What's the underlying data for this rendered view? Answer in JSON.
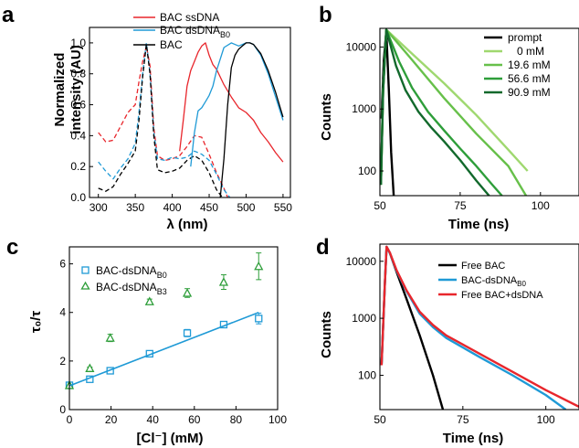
{
  "chart_data": [
    {
      "panel": "a",
      "type": "line",
      "xlabel": "λ (nm)",
      "ylabel_line1": "Normalized",
      "ylabel_line2": "intensity (AU)",
      "xlim": [
        288,
        560
      ],
      "ylim": [
        0,
        1.1
      ],
      "x_ticks": [
        300,
        350,
        400,
        450,
        500,
        550
      ],
      "y_ticks": [
        0.0,
        0.2,
        0.4,
        0.6,
        0.8,
        1.0
      ],
      "legend": {
        "position": "top-left",
        "entries": [
          "BAC ssDNA",
          "BAC dsDNA",
          "BAC"
        ],
        "subscripts": [
          "",
          "B0",
          ""
        ]
      },
      "series": [
        {
          "name": "BAC ssDNA",
          "kind": "excitation",
          "style": "dashed",
          "color": "#e8262c",
          "x": [
            300,
            310,
            320,
            330,
            340,
            350,
            355,
            360,
            365,
            370,
            375,
            380,
            390,
            400,
            410,
            420,
            430,
            440,
            450,
            460,
            470,
            475
          ],
          "y": [
            0.42,
            0.36,
            0.37,
            0.46,
            0.55,
            0.6,
            0.75,
            0.88,
            0.98,
            0.85,
            0.45,
            0.27,
            0.24,
            0.25,
            0.27,
            0.33,
            0.4,
            0.39,
            0.28,
            0.16,
            0.06,
            0.0
          ]
        },
        {
          "name": "BAC dsDNA",
          "kind": "excitation",
          "style": "dashed",
          "color": "#1f9ad6",
          "x": [
            300,
            310,
            320,
            330,
            340,
            350,
            355,
            360,
            365,
            370,
            375,
            380,
            390,
            400,
            410,
            420,
            430,
            440,
            450,
            460,
            470,
            478
          ],
          "y": [
            0.23,
            0.17,
            0.12,
            0.19,
            0.25,
            0.35,
            0.55,
            0.8,
            1.0,
            0.8,
            0.42,
            0.25,
            0.24,
            0.26,
            0.25,
            0.26,
            0.3,
            0.28,
            0.24,
            0.15,
            0.05,
            0.0
          ]
        },
        {
          "name": "BAC",
          "kind": "excitation",
          "style": "dashed",
          "color": "#000000",
          "x": [
            300,
            310,
            320,
            330,
            340,
            350,
            355,
            360,
            365,
            370,
            375,
            380,
            390,
            400,
            410,
            420,
            430,
            440,
            450,
            460,
            468
          ],
          "y": [
            0.06,
            0.04,
            0.07,
            0.15,
            0.22,
            0.3,
            0.5,
            0.78,
            0.99,
            0.8,
            0.4,
            0.18,
            0.16,
            0.17,
            0.19,
            0.24,
            0.27,
            0.24,
            0.16,
            0.05,
            0.0
          ]
        },
        {
          "name": "BAC ssDNA",
          "kind": "emission",
          "style": "solid",
          "color": "#e8262c",
          "x": [
            410,
            415,
            420,
            425,
            430,
            435,
            440,
            445,
            450,
            455,
            460,
            470,
            480,
            490,
            500,
            510,
            520,
            530,
            540,
            550
          ],
          "y": [
            0.3,
            0.5,
            0.72,
            0.82,
            0.88,
            0.94,
            0.98,
            1.0,
            0.92,
            0.86,
            0.83,
            0.73,
            0.65,
            0.58,
            0.55,
            0.5,
            0.42,
            0.36,
            0.29,
            0.23
          ]
        },
        {
          "name": "BAC dsDNA",
          "kind": "emission",
          "style": "solid",
          "color": "#1f9ad6",
          "x": [
            425,
            430,
            435,
            440,
            445,
            450,
            455,
            460,
            470,
            480,
            490,
            500,
            505,
            510,
            520,
            530,
            540,
            550
          ],
          "y": [
            0.2,
            0.42,
            0.56,
            0.58,
            0.62,
            0.66,
            0.72,
            0.82,
            0.97,
            1.0,
            0.98,
            1.0,
            1.0,
            0.99,
            0.92,
            0.8,
            0.65,
            0.5
          ]
        },
        {
          "name": "BAC",
          "kind": "emission",
          "style": "solid",
          "color": "#000000",
          "x": [
            465,
            470,
            475,
            480,
            485,
            490,
            495,
            500,
            505,
            510,
            520,
            530,
            540,
            550
          ],
          "y": [
            0.0,
            0.25,
            0.6,
            0.84,
            0.92,
            0.96,
            0.98,
            1.0,
            1.0,
            0.99,
            0.93,
            0.82,
            0.68,
            0.52
          ]
        }
      ]
    },
    {
      "panel": "b",
      "type": "line",
      "xlabel": "Time (ns)",
      "ylabel": "Counts",
      "y_scale": "log",
      "xlim": [
        50,
        112
      ],
      "ylim": [
        40,
        20000
      ],
      "x_ticks": [
        50,
        75,
        100
      ],
      "y_ticks": [
        100,
        1000,
        10000
      ],
      "y_tick_labels": [
        "100",
        "1000",
        "10000"
      ],
      "legend": {
        "position": "top-right",
        "entries": [
          "prompt",
          "0 mM",
          "19.6 mM",
          "56.6 mM",
          "90.9 mM"
        ]
      },
      "series": [
        {
          "name": "prompt",
          "color": "#000000",
          "x": [
            50.5,
            51.2,
            52,
            52.8,
            53.5,
            54.3
          ],
          "y": [
            700,
            6000,
            18000,
            2000,
            200,
            40
          ]
        },
        {
          "name": "0 mM",
          "color": "#9fd86f",
          "x": [
            50.3,
            51,
            52,
            60,
            70,
            80,
            90,
            96
          ],
          "y": [
            60,
            2000,
            19000,
            7800,
            2600,
            800,
            220,
            100
          ]
        },
        {
          "name": "19.6 mM",
          "color": "#67c04a",
          "x": [
            50.3,
            51,
            52,
            60,
            70,
            80,
            90,
            95.5
          ],
          "y": [
            60,
            2000,
            19000,
            6200,
            1500,
            400,
            120,
            40
          ]
        },
        {
          "name": "56.6 mM",
          "color": "#2e9e3a",
          "x": [
            50.3,
            51,
            52,
            56,
            60,
            65,
            70,
            75,
            80,
            85,
            88
          ],
          "y": [
            60,
            2000,
            19000,
            5800,
            2200,
            900,
            450,
            230,
            120,
            60,
            40
          ]
        },
        {
          "name": "90.9 mM",
          "color": "#12692c",
          "x": [
            50.3,
            51,
            52,
            55,
            58,
            62,
            66,
            70,
            75,
            80,
            84
          ],
          "y": [
            60,
            2000,
            19000,
            5000,
            2000,
            900,
            500,
            300,
            150,
            70,
            40
          ]
        }
      ]
    },
    {
      "panel": "c",
      "type": "scatter",
      "xlabel": "[Cl⁻] (mM)",
      "ylabel": "τ₀/τ",
      "xlim": [
        0,
        100
      ],
      "ylim": [
        0,
        6.7
      ],
      "x_ticks": [
        0,
        20,
        40,
        60,
        80,
        100
      ],
      "y_ticks": [
        0,
        2,
        4,
        6
      ],
      "legend": {
        "position": "top-left",
        "entries": [
          "BAC-dsDNA",
          "BAC-dsDNA"
        ],
        "subscripts": [
          "B0",
          "B3"
        ]
      },
      "series": [
        {
          "name": "BAC-dsDNA",
          "subscript": "B0",
          "marker": "square",
          "color": "#1f9ad6",
          "x": [
            0,
            9.8,
            19.6,
            38.5,
            56.6,
            74.1,
            90.9
          ],
          "y": [
            1.0,
            1.25,
            1.6,
            2.3,
            3.15,
            3.5,
            3.75
          ],
          "err": [
            0.0,
            0.06,
            0.08,
            0.12,
            0.15,
            0.1,
            0.22
          ]
        },
        {
          "name": "BAC-dsDNA",
          "subscript": "B3",
          "marker": "triangle",
          "color": "#2e9e3a",
          "x": [
            0,
            9.8,
            19.6,
            38.5,
            56.6,
            74.1,
            90.9
          ],
          "y": [
            1.0,
            1.7,
            2.95,
            4.45,
            4.8,
            5.25,
            5.9
          ],
          "err": [
            0.0,
            0.05,
            0.15,
            0.1,
            0.18,
            0.3,
            0.55
          ]
        },
        {
          "name": "fit",
          "kind": "line",
          "color": "#1f9ad6",
          "x": [
            0,
            90.9
          ],
          "y": [
            0.98,
            4.0
          ]
        }
      ]
    },
    {
      "panel": "d",
      "type": "line",
      "xlabel": "Time (ns)",
      "ylabel": "Counts",
      "y_scale": "log",
      "xlim": [
        50,
        110
      ],
      "ylim": [
        25,
        20000
      ],
      "x_ticks": [
        50,
        75,
        100
      ],
      "y_ticks": [
        100,
        1000,
        10000
      ],
      "y_tick_labels": [
        "100",
        "1000",
        "10000"
      ],
      "legend": {
        "position": "top-right",
        "entries": [
          "Free BAC",
          "BAC-dsDNA",
          "Free BAC+dsDNA"
        ],
        "subscripts": [
          "",
          "B0",
          ""
        ]
      },
      "series": [
        {
          "name": "Free BAC",
          "color": "#000000",
          "x": [
            50.5,
            51.5,
            52,
            53,
            55,
            58,
            62,
            66,
            69
          ],
          "y": [
            150,
            4000,
            18000,
            14000,
            6500,
            2200,
            500,
            100,
            25
          ]
        },
        {
          "name": "BAC-dsDNA",
          "subscript": "B0",
          "color": "#1f9ad6",
          "x": [
            50.5,
            51.5,
            52,
            53,
            55,
            58,
            62,
            66,
            70,
            80,
            90,
            100,
            106
          ],
          "y": [
            150,
            4000,
            18000,
            14000,
            6800,
            3000,
            1200,
            700,
            450,
            210,
            100,
            45,
            25
          ]
        },
        {
          "name": "Free BAC+dsDNA",
          "color": "#e8262c",
          "x": [
            50.5,
            51.5,
            52,
            53,
            55,
            58,
            62,
            66,
            70,
            80,
            90,
            100,
            110
          ],
          "y": [
            150,
            4000,
            18000,
            14200,
            7000,
            3100,
            1300,
            760,
            500,
            240,
            115,
            55,
            28
          ]
        }
      ]
    }
  ]
}
